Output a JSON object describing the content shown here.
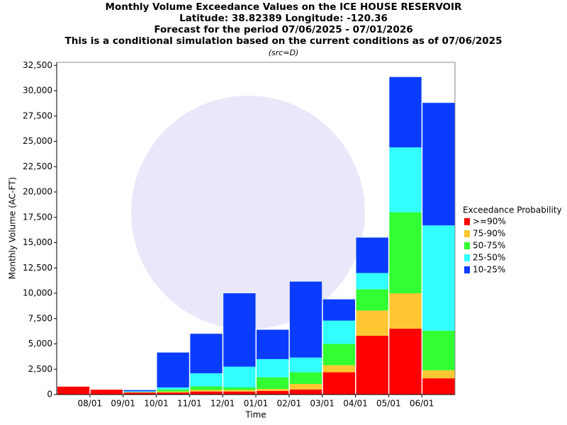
{
  "chart_data": {
    "type": "stacked_bar",
    "title": [
      "Monthly Volume Exceedance Values on the ICE HOUSE RESERVOIR",
      "Latitude: 38.82389 Longitude: -120.36",
      "Forecast for the period 07/06/2025 - 07/01/2026",
      "This is a conditional simulation based on the current conditions as of 07/06/2025"
    ],
    "subtitle": "(src=D)",
    "x_label": "Time",
    "y_label": "Monthly Volume (AC-FT)",
    "legend_title": "Exceedance Probability",
    "legend": "right",
    "categories": [
      null,
      "08/01",
      "09/01",
      "10/01",
      "11/01",
      "12/01",
      "01/01",
      "02/01",
      "03/01",
      "04/01",
      "05/01",
      "06/01"
    ],
    "series": [
      {
        "name": ">=90%",
        "color": "#ff0000",
        "values": [
          780,
          480,
          200,
          200,
          300,
          300,
          350,
          500,
          2200,
          5800,
          6500,
          1600
        ]
      },
      {
        "name": "75-90%",
        "color": "#ffc832",
        "values": [
          0,
          0,
          30,
          100,
          150,
          150,
          200,
          550,
          700,
          2500,
          3500,
          800
        ]
      },
      {
        "name": "50-75%",
        "color": "#32ff32",
        "values": [
          0,
          0,
          30,
          200,
          350,
          250,
          1150,
          1150,
          2100,
          2100,
          8000,
          3900
        ]
      },
      {
        "name": "25-50%",
        "color": "#32ffff",
        "values": [
          0,
          0,
          60,
          200,
          1300,
          2050,
          1800,
          1450,
          2300,
          1600,
          6400,
          10400
        ]
      },
      {
        "name": "10-25%",
        "color": "#0a3cff",
        "values": [
          0,
          0,
          120,
          3450,
          3900,
          7250,
          2900,
          7500,
          2100,
          3500,
          6950,
          12100
        ]
      }
    ],
    "ylim": [
      0,
      32800
    ],
    "yticks": [
      0,
      {
        "value": 2500,
        "label": "2,500"
      },
      {
        "value": 5000,
        "label": "5,000"
      },
      {
        "value": 7500,
        "label": "7,500"
      },
      {
        "value": 10000,
        "label": "10,000"
      },
      {
        "value": 12500,
        "label": "12,500"
      },
      {
        "value": 15000,
        "label": "15,000"
      },
      {
        "value": 17500,
        "label": "17,500"
      },
      {
        "value": 20000,
        "label": "20,000"
      },
      {
        "value": 22500,
        "label": "22,500"
      },
      {
        "value": 25000,
        "label": "25,000"
      },
      {
        "value": 27500,
        "label": "27,500"
      },
      {
        "value": 30000,
        "label": "30,000"
      },
      {
        "value": 32500,
        "label": "32,500"
      }
    ]
  }
}
